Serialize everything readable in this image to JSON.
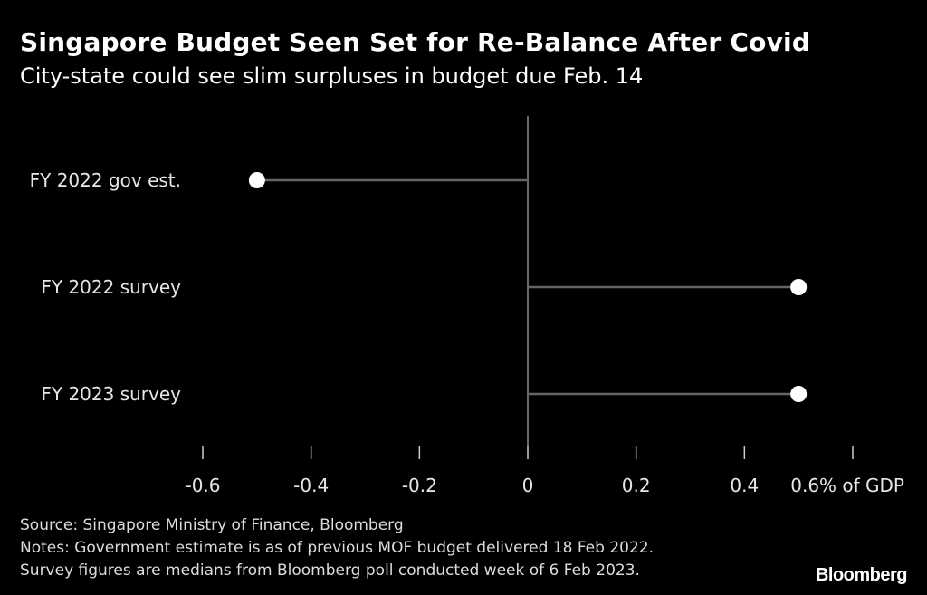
{
  "title": "Singapore Budget Seen Set for Re-Balance After Covid",
  "subtitle": "City-state could see slim surpluses in budget due Feb. 14",
  "chart_data": {
    "type": "dot",
    "categories": [
      "FY 2022 gov est.",
      "FY 2022 survey",
      "FY 2023 survey"
    ],
    "values": [
      -0.5,
      0.5,
      0.5
    ],
    "xlim": [
      -0.6,
      0.6
    ],
    "xticks": [
      -0.6,
      -0.4,
      -0.2,
      0,
      0.2,
      0.4,
      0.6
    ],
    "xtick_labels": [
      "-0.6",
      "-0.4",
      "-0.2",
      "0",
      "0.2",
      "0.4",
      "0.6% of GDP"
    ],
    "grid": false,
    "colors": {
      "background": "#000000",
      "dot": "#ffffff",
      "line": "#666666",
      "axis": "#8c8c8c"
    }
  },
  "notes": {
    "source": "Source: Singapore Ministry of Finance, Bloomberg",
    "line1": "Notes: Government estimate is as of previous MOF budget delivered 18 Feb 2022.",
    "line2": "Survey figures are medians from Bloomberg poll conducted week of 6 Feb 2023."
  },
  "brand": "Bloomberg"
}
